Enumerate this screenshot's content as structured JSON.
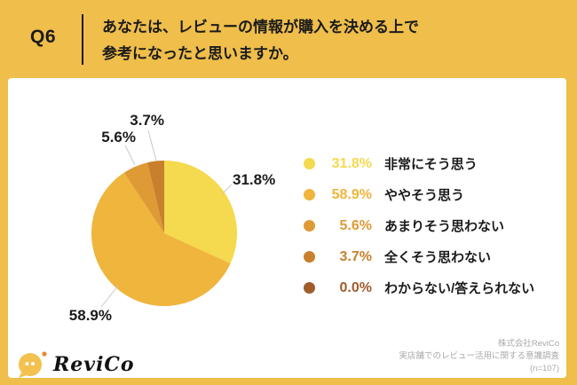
{
  "header": {
    "q_label": "Q6",
    "question_line1": "あなたは、レビューの情報が購入を決める上で",
    "question_line2": "参考になったと思いますか。"
  },
  "chart_data": {
    "type": "pie",
    "title": "",
    "start_angle": "top",
    "direction": "clockwise",
    "legend_position": "right",
    "slices": [
      {
        "label": "非常にそう思う",
        "value": 31.8,
        "pct_label": "31.8%",
        "color": "#F5D94E"
      },
      {
        "label": "ややそう思う",
        "value": 58.9,
        "pct_label": "58.9%",
        "color": "#EFB53C"
      },
      {
        "label": "あまりそう思わない",
        "value": 5.6,
        "pct_label": "5.6%",
        "color": "#DE9A35"
      },
      {
        "label": "全くそう思わない",
        "value": 3.7,
        "pct_label": "3.7%",
        "color": "#C8802C"
      },
      {
        "label": "わからない/答えられない",
        "value": 0.0,
        "pct_label": "0.0%",
        "color": "#A05C2B"
      }
    ]
  },
  "footer": {
    "logo_text": "ReviCo",
    "source_line1": "株式会社ReviCo",
    "source_line2": "実店舗でのレビュー活用に関する意識調査",
    "source_line3": "(n=107)"
  },
  "colors": {
    "background": "#EFBE4B",
    "panel": "#FFFFFF",
    "text": "#1B1B1B",
    "muted": "#A9A9A9",
    "leader_line": "#C9C9C9",
    "logo_bubble": "#F2C14E",
    "logo_dot": "#E58A2F"
  }
}
